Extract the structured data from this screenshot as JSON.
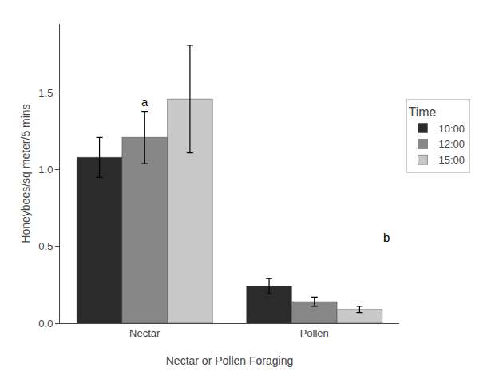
{
  "chart_data": {
    "type": "bar",
    "categories": [
      "Nectar",
      "Pollen"
    ],
    "series": [
      {
        "name": "10:00",
        "color": "#2b2b2b",
        "values": [
          1.08,
          0.24
        ],
        "errors": [
          0.13,
          0.05
        ]
      },
      {
        "name": "12:00",
        "color": "#878787",
        "values": [
          1.21,
          0.14
        ],
        "errors": [
          0.17,
          0.03
        ]
      },
      {
        "name": "15:00",
        "color": "#c8c8c8",
        "values": [
          1.46,
          0.09
        ],
        "errors": [
          0.35,
          0.02
        ]
      }
    ],
    "xlabel": "Nectar or Pollen Foraging",
    "ylabel": "Honeybees/sq meter/5 mins",
    "legend_title": "Time",
    "annotations": [
      {
        "text": "a",
        "category": "Nectar",
        "series": "12:00"
      },
      {
        "text": "b",
        "category": "Pollen"
      }
    ],
    "ylim": [
      0,
      1.95
    ],
    "yticks": [
      {
        "value": 0,
        "label": "0.0"
      },
      0.5,
      {
        "value": 1,
        "label": "1.0"
      },
      1.5
    ],
    "grid": false,
    "legend": "right"
  }
}
